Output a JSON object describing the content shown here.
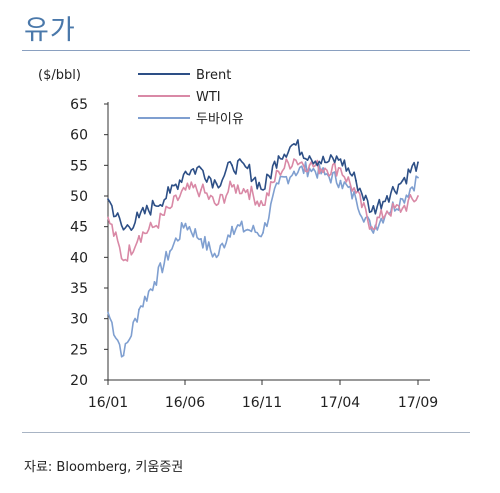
{
  "page": {
    "title": "유가",
    "source": "자료: Bloomberg, 키움증권"
  },
  "chart_data": {
    "type": "line",
    "title": "",
    "ylabel": "($/bbl)",
    "xlabel": "",
    "ylim": [
      20,
      65
    ],
    "y_ticks": [
      "65",
      "60",
      "55",
      "50",
      "45",
      "40",
      "35",
      "30",
      "25",
      "20"
    ],
    "x_ticks": [
      "16/01",
      "16/06",
      "16/11",
      "17/04",
      "17/09"
    ],
    "legend_position": "top-left",
    "grid": false,
    "series": [
      {
        "name": "Brent",
        "color": "#2d4f86",
        "x": [
          "16/01",
          "16/02",
          "16/03",
          "16/04",
          "16/05",
          "16/06",
          "16/07",
          "16/08",
          "16/09",
          "16/10",
          "16/11",
          "16/12",
          "17/01",
          "17/02",
          "17/03",
          "17/04",
          "17/05",
          "17/06",
          "17/07",
          "17/08",
          "17/09"
        ],
        "values": [
          49.5,
          44.5,
          46.5,
          48.5,
          50.5,
          54.0,
          54.5,
          52.0,
          55.0,
          54.5,
          51.0,
          56.5,
          58.5,
          56.5,
          55.5,
          56.0,
          52.5,
          47.5,
          50.0,
          52.5,
          55.5
        ]
      },
      {
        "name": "WTI",
        "color": "#d989a6",
        "x": [
          "16/01",
          "16/02",
          "16/03",
          "16/04",
          "16/05",
          "16/06",
          "16/07",
          "16/08",
          "16/09",
          "16/10",
          "16/11",
          "16/12",
          "17/01",
          "17/02",
          "17/03",
          "17/04",
          "17/05",
          "17/06",
          "17/07",
          "17/08",
          "17/09"
        ],
        "values": [
          46.5,
          39.5,
          43.5,
          45.0,
          48.0,
          51.0,
          51.0,
          48.5,
          51.5,
          51.0,
          48.5,
          54.0,
          56.0,
          55.0,
          54.5,
          54.5,
          50.5,
          45.0,
          47.5,
          48.0,
          50.0
        ]
      },
      {
        "name": "두바이유",
        "color": "#7f9fd0",
        "x": [
          "16/01",
          "16/02",
          "16/03",
          "16/04",
          "16/05",
          "16/06",
          "16/07",
          "16/08",
          "16/09",
          "16/10",
          "16/11",
          "16/12",
          "17/01",
          "17/02",
          "17/03",
          "17/04",
          "17/05",
          "17/06",
          "17/07",
          "17/08",
          "17/09"
        ],
        "values": [
          31.0,
          24.0,
          31.5,
          36.0,
          41.0,
          45.5,
          43.0,
          40.0,
          45.0,
          44.5,
          44.0,
          52.0,
          54.0,
          54.5,
          53.5,
          52.5,
          49.5,
          44.5,
          47.5,
          49.5,
          53.0
        ]
      }
    ]
  }
}
